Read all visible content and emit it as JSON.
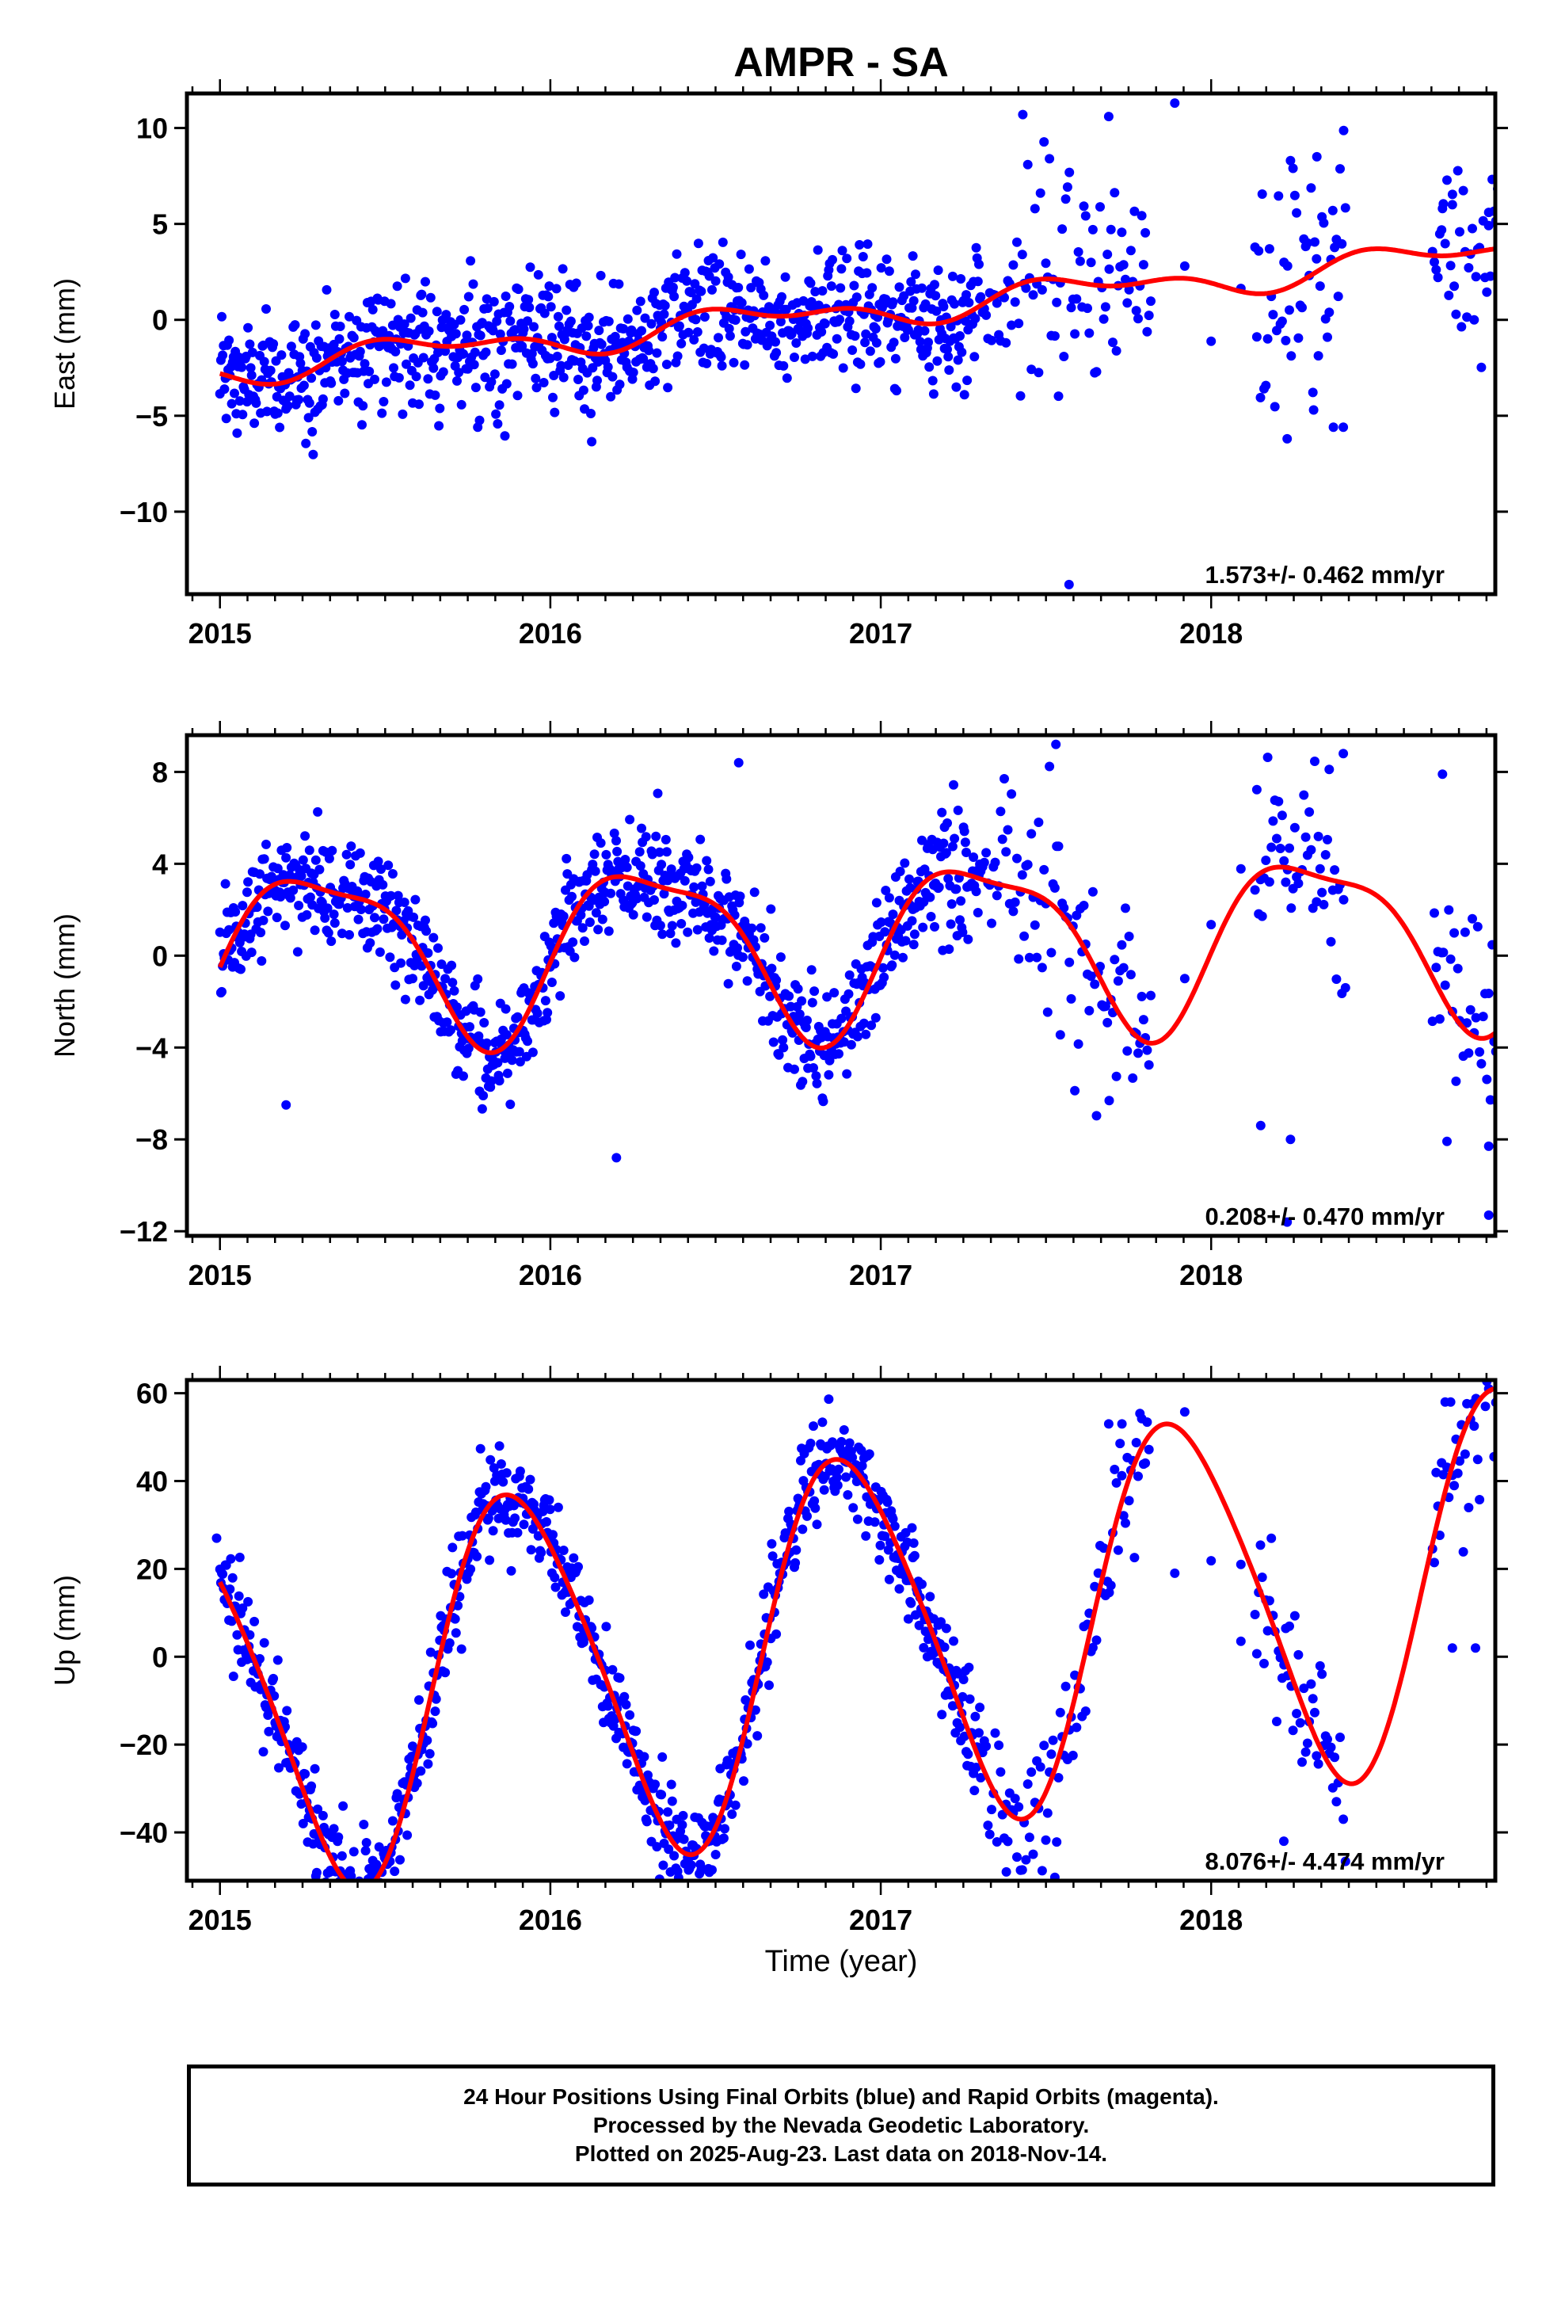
{
  "title": "AMPR - SA",
  "x_axis_label": "Time (year)",
  "footer": {
    "line1": "24 Hour Positions Using Final Orbits (blue) and Rapid Orbits (magenta).",
    "line2": "Processed by the Nevada Geodetic Laboratory.",
    "line3": "Plotted on 2025-Aug-23. Last data on 2018-Nov-14."
  },
  "colors": {
    "points": "#0000ff",
    "fit": "#ff0000",
    "frame": "#000000"
  },
  "chart_data": [
    {
      "type": "scatter",
      "ylabel": "East (mm)",
      "xlim": [
        2014.9,
        2018.86
      ],
      "ylim": [
        -14.3,
        11.8
      ],
      "xticks": [
        2015,
        2016,
        2017,
        2018
      ],
      "xtick_labels": [
        "2015",
        "2016",
        "2017",
        "2018"
      ],
      "yticks": [
        10,
        5,
        0,
        -5,
        -10
      ],
      "ytick_labels": [
        "10",
        "5",
        "0",
        "−5",
        "−10"
      ],
      "rate_label": "1.573+/- 0.462 mm/yr",
      "trend": {
        "rate_per_yr": 1.573,
        "value_at_2015": -2.6
      },
      "seasonal": {
        "annual_sin": -0.4,
        "annual_cos": -0.5,
        "semiannual_sin": -0.3,
        "semiannual_cos": 0.3
      },
      "scatter_sigma": 1.6,
      "scatter_sigma_late": 2.8,
      "series": [
        {
          "points": [
            [
              2017.57,
              -13.8
            ],
            [
              2017.89,
              11.3
            ],
            [
              2017.43,
              10.7
            ],
            [
              2017.69,
              10.6
            ],
            [
              2018.24,
              8.3
            ],
            [
              2018.32,
              8.5
            ],
            [
              2018.23,
              -6.2
            ],
            [
              2018.37,
              -5.6
            ],
            [
              2018.4,
              -5.6
            ],
            [
              2018.31,
              -4.7
            ],
            [
              2018.7,
              5.8
            ],
            [
              2018.73,
              6.0
            ],
            [
              2018.84,
              5.6
            ]
          ]
        }
      ]
    },
    {
      "type": "scatter",
      "ylabel": "North (mm)",
      "xlim": [
        2014.9,
        2018.86
      ],
      "ylim": [
        -12.2,
        9.6
      ],
      "xticks": [
        2015,
        2016,
        2017,
        2018
      ],
      "xtick_labels": [
        "2015",
        "2016",
        "2017",
        "2018"
      ],
      "yticks": [
        8,
        4,
        0,
        -4,
        -8,
        -12
      ],
      "ytick_labels": [
        "8",
        "4",
        "0",
        "−4",
        "−8",
        "−12"
      ],
      "rate_label": "0.208+/- 0.470 mm/yr",
      "trend": {
        "rate_per_yr": 0.208,
        "value_at_2015": 0.2
      },
      "seasonal": {
        "annual_sin": 3.4,
        "annual_cos": -1.2,
        "semiannual_sin": 0.9,
        "semiannual_cos": 0.5
      },
      "scatter_sigma": 1.2,
      "scatter_sigma_late": 2.4,
      "series": [
        {
          "points": [
            [
              2017.53,
              9.2
            ],
            [
              2018.4,
              8.8
            ],
            [
              2018.7,
              7.9
            ],
            [
              2018.84,
              -8.3
            ],
            [
              2018.84,
              -11.3
            ],
            [
              2018.23,
              -11.6
            ],
            [
              2016.2,
              -8.8
            ],
            [
              2015.2,
              -6.5
            ],
            [
              2018.15,
              -7.4
            ],
            [
              2018.24,
              -8.0
            ],
            [
              2016.57,
              8.4
            ]
          ]
        }
      ]
    },
    {
      "type": "scatter",
      "ylabel": "Up (mm)",
      "xlim": [
        2014.9,
        2018.86
      ],
      "ylim": [
        -51,
        63
      ],
      "xticks": [
        2015,
        2016,
        2017,
        2018
      ],
      "xtick_labels": [
        "2015",
        "2016",
        "2017",
        "2018"
      ],
      "yticks": [
        60,
        40,
        20,
        0,
        -20,
        -40
      ],
      "ytick_labels": [
        "60",
        "40",
        "20",
        "0",
        "−20",
        "−40"
      ],
      "rate_label": "8.076+/- 4.474 mm/yr",
      "trend": {
        "rate_per_yr": 8.076,
        "value_at_2015": -12.0
      },
      "seasonal": {
        "annual_sin": -25.0,
        "annual_cos": 34.0,
        "semiannual_sin": 0.0,
        "semiannual_cos": -5.0
      },
      "scatter_sigma": 5.5,
      "scatter_sigma_late": 10.0,
      "series": [
        {
          "points": [
            [
              2018.84,
              61.0
            ],
            [
              2018.83,
              57.0
            ],
            [
              2017.69,
              53.0
            ],
            [
              2017.73,
              53.0
            ],
            [
              2017.38,
              -49.0
            ],
            [
              2018.22,
              -42.0
            ],
            [
              2018.4,
              -37.0
            ],
            [
              2017.89,
              19.0
            ],
            [
              2018.09,
              21.0
            ],
            [
              2018.8,
              2.0
            ],
            [
              2018.73,
              2.0
            ],
            [
              2014.99,
              27.0
            ]
          ]
        }
      ]
    }
  ]
}
